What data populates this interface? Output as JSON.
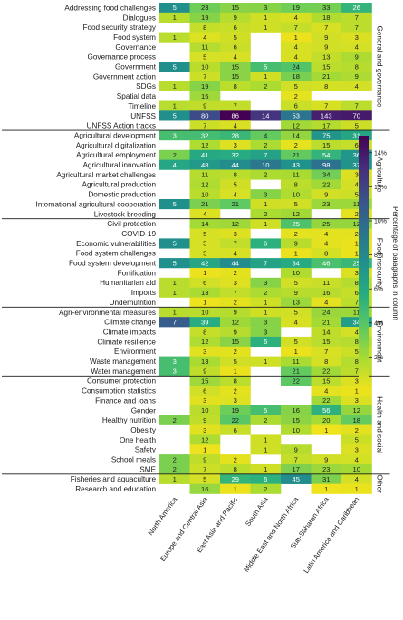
{
  "chart_data": {
    "type": "heatmap",
    "title": "",
    "columns": [
      "North America",
      "Europe and Central Asia",
      "East Asia and Pacific",
      "South Asia",
      "Middle East and North Africa",
      "Sub-Saharan Africa",
      "Latin America and Caribbean"
    ],
    "color_scale": {
      "label": "Percentage of paragraphs in column",
      "min": 0,
      "max": 15,
      "ticks": [
        2,
        4,
        6,
        8,
        10,
        12,
        14
      ],
      "tick_labels": [
        "2%",
        "4%",
        "6%",
        "8%",
        "10%",
        "12%",
        "14%"
      ],
      "stops": [
        "#f2e31b",
        "#aadb32",
        "#5ec962",
        "#27ad81",
        "#21918c",
        "#2c728e",
        "#3b528b",
        "#472d7b",
        "#440154"
      ]
    },
    "groups": [
      {
        "name": "General and governance",
        "rows": [
          {
            "label": "Addressing food challenges",
            "values": [
              5,
              23,
              15,
              3,
              19,
              33,
              26
            ]
          },
          {
            "label": "Dialogues",
            "values": [
              1,
              19,
              9,
              1,
              4,
              18,
              7
            ]
          },
          {
            "label": "Food security strategy",
            "values": [
              null,
              8,
              6,
              1,
              7,
              7,
              7
            ]
          },
          {
            "label": "Food system",
            "values": [
              1,
              4,
              5,
              null,
              1,
              9,
              3
            ]
          },
          {
            "label": "Governance",
            "values": [
              null,
              11,
              6,
              null,
              4,
              9,
              4
            ]
          },
          {
            "label": "Governance process",
            "values": [
              null,
              5,
              4,
              null,
              4,
              13,
              9
            ]
          },
          {
            "label": "Government",
            "values": [
              5,
              10,
              15,
              5,
              24,
              15,
              8
            ]
          },
          {
            "label": "Government action",
            "values": [
              null,
              7,
              15,
              1,
              18,
              21,
              9
            ]
          },
          {
            "label": "SDGs",
            "values": [
              1,
              19,
              8,
              2,
              5,
              8,
              4
            ]
          },
          {
            "label": "Spatial data",
            "values": [
              null,
              15,
              null,
              null,
              2,
              null,
              null
            ]
          },
          {
            "label": "Timeline",
            "values": [
              1,
              9,
              7,
              null,
              6,
              7,
              7
            ]
          },
          {
            "label": "UNFSS",
            "values": [
              5,
              80,
              86,
              14,
              53,
              143,
              70
            ]
          },
          {
            "label": "UNFSS Action tracks",
            "values": [
              null,
              7,
              4,
              null,
              12,
              17,
              5
            ]
          }
        ]
      },
      {
        "name": "Agriculture",
        "rows": [
          {
            "label": "Agricultural development",
            "values": [
              3,
              32,
              28,
              4,
              14,
              75,
              31
            ]
          },
          {
            "label": "Agricultural digitalization",
            "values": [
              null,
              12,
              3,
              2,
              2,
              15,
              6
            ]
          },
          {
            "label": "Agricultural employment",
            "values": [
              2,
              41,
              32,
              7,
              21,
              54,
              36
            ]
          },
          {
            "label": "Agricultural innovation",
            "values": [
              4,
              48,
              44,
              10,
              43,
              98,
              37
            ]
          },
          {
            "label": "Agricultural market challenges",
            "values": [
              null,
              11,
              8,
              2,
              11,
              34,
              3
            ]
          },
          {
            "label": "Agricultural production",
            "values": [
              null,
              12,
              5,
              null,
              8,
              22,
              4
            ]
          },
          {
            "label": "Domestic production",
            "values": [
              null,
              10,
              4,
              3,
              10,
              9,
              5
            ]
          },
          {
            "label": "International agricultural cooperation",
            "values": [
              5,
              21,
              21,
              1,
              5,
              23,
              11
            ]
          },
          {
            "label": "Livestock breeding",
            "values": [
              null,
              4,
              null,
              2,
              12,
              null,
              2
            ]
          }
        ]
      },
      {
        "name": "Food insecurity",
        "rows": [
          {
            "label": "Civil protection",
            "values": [
              null,
              14,
              12,
              1,
              25,
              25,
              12
            ]
          },
          {
            "label": "COVID-19",
            "values": [
              null,
              5,
              3,
              null,
              2,
              4,
              2
            ]
          },
          {
            "label": "Economic vulnerabilities",
            "values": [
              5,
              5,
              7,
              6,
              9,
              4,
              1
            ]
          },
          {
            "label": "Food system challenges",
            "values": [
              null,
              5,
              4,
              null,
              1,
              8,
              1
            ]
          },
          {
            "label": "Food system development",
            "values": [
              5,
              42,
              44,
              7,
              34,
              46,
              25
            ]
          },
          {
            "label": "Fortification",
            "values": [
              null,
              1,
              2,
              null,
              10,
              null,
              3
            ]
          },
          {
            "label": "Humanitarian aid",
            "values": [
              1,
              6,
              3,
              3,
              5,
              11,
              8
            ]
          },
          {
            "label": "Imports",
            "values": [
              1,
              13,
              7,
              2,
              9,
              16,
              6
            ]
          },
          {
            "label": "Undernutrition",
            "values": [
              null,
              1,
              2,
              1,
              13,
              4,
              7
            ]
          }
        ]
      },
      {
        "name": "Environment",
        "rows": [
          {
            "label": "Agri-environmental measures",
            "values": [
              1,
              10,
              9,
              1,
              5,
              24,
              11
            ]
          },
          {
            "label": "Climate change",
            "values": [
              7,
              39,
              12,
              3,
              4,
              21,
              34
            ]
          },
          {
            "label": "Climate impacts",
            "values": [
              null,
              8,
              9,
              3,
              null,
              14,
              4
            ]
          },
          {
            "label": "Climate resilience",
            "values": [
              null,
              12,
              15,
              6,
              5,
              15,
              8
            ]
          },
          {
            "label": "Environment",
            "values": [
              null,
              3,
              2,
              null,
              1,
              7,
              5
            ]
          },
          {
            "label": "Waste management",
            "values": [
              3,
              13,
              5,
              1,
              11,
              8,
              8
            ]
          },
          {
            "label": "Water management",
            "values": [
              3,
              9,
              1,
              null,
              21,
              22,
              7
            ]
          }
        ]
      },
      {
        "name": "Health and social",
        "rows": [
          {
            "label": "Consumer protection",
            "values": [
              null,
              15,
              8,
              null,
              22,
              15,
              3
            ]
          },
          {
            "label": "Consumption statistics",
            "values": [
              null,
              6,
              2,
              null,
              null,
              4,
              1
            ]
          },
          {
            "label": "Finance and loans",
            "values": [
              null,
              3,
              3,
              null,
              null,
              22,
              3
            ]
          },
          {
            "label": "Gender",
            "values": [
              null,
              10,
              19,
              5,
              16,
              56,
              12
            ]
          },
          {
            "label": "Healthy nutrition",
            "values": [
              2,
              9,
              22,
              2,
              15,
              20,
              18
            ]
          },
          {
            "label": "Obesity",
            "values": [
              null,
              3,
              6,
              null,
              10,
              1,
              2
            ]
          },
          {
            "label": "One health",
            "values": [
              null,
              12,
              null,
              1,
              null,
              null,
              5
            ]
          },
          {
            "label": "Safety",
            "values": [
              null,
              1,
              null,
              1,
              9,
              null,
              3
            ]
          },
          {
            "label": "School meals",
            "values": [
              2,
              9,
              2,
              null,
              7,
              9,
              4
            ]
          },
          {
            "label": "SME",
            "values": [
              2,
              7,
              8,
              1,
              17,
              23,
              10
            ]
          }
        ]
      },
      {
        "name": "Other",
        "rows": [
          {
            "label": "Fisheries and aquaculture",
            "values": [
              1,
              5,
              29,
              6,
              45,
              31,
              4
            ]
          },
          {
            "label": "Research and education",
            "values": [
              null,
              16,
              1,
              2,
              null,
              1,
              1
            ]
          }
        ]
      }
    ]
  }
}
